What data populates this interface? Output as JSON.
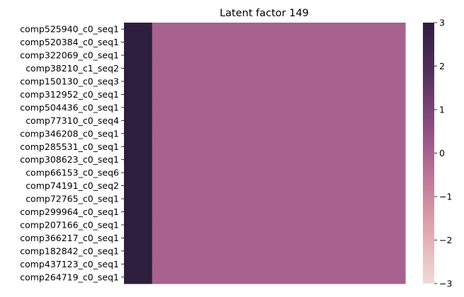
{
  "chart_data": {
    "type": "heatmap",
    "title": "Latent factor 149",
    "xlabel": "",
    "ylabel": "",
    "rows": [
      "comp525940_c0_seq1",
      "comp520384_c0_seq1",
      "comp322069_c0_seq1",
      "comp38210_c1_seq2",
      "comp150130_c0_seq3",
      "comp312952_c0_seq1",
      "comp504436_c0_seq1",
      "comp77310_c0_seq4",
      "comp346208_c0_seq1",
      "comp285531_c0_seq1",
      "comp308623_c0_seq1",
      "comp66153_c0_seq6",
      "comp74191_c0_seq2",
      "comp72765_c0_seq1",
      "comp299964_c0_seq1",
      "comp207166_c0_seq1",
      "comp366217_c0_seq1",
      "comp182842_c0_seq1",
      "comp437123_c0_seq1",
      "comp264719_c0_seq1"
    ],
    "column_groups": [
      {
        "width_fraction": 0.1,
        "value": 3.0
      },
      {
        "width_fraction": 0.9,
        "value": 0.0
      }
    ],
    "colorbar": {
      "range": [
        -3,
        3
      ],
      "ticks": [
        3,
        2,
        1,
        0,
        -1,
        -2,
        -3
      ],
      "tick_labels": [
        "3",
        "2",
        "1",
        "0",
        "−1",
        "−2",
        "−3"
      ],
      "colors": [
        "#f0dad6",
        "#e2a9ad",
        "#c07799",
        "#8e4d84",
        "#57305e",
        "#2d1e3e"
      ]
    },
    "colors": {
      "high": "#2d1e3e",
      "mid": "#c07799"
    },
    "grid": false,
    "colorbar_placement": "right"
  }
}
